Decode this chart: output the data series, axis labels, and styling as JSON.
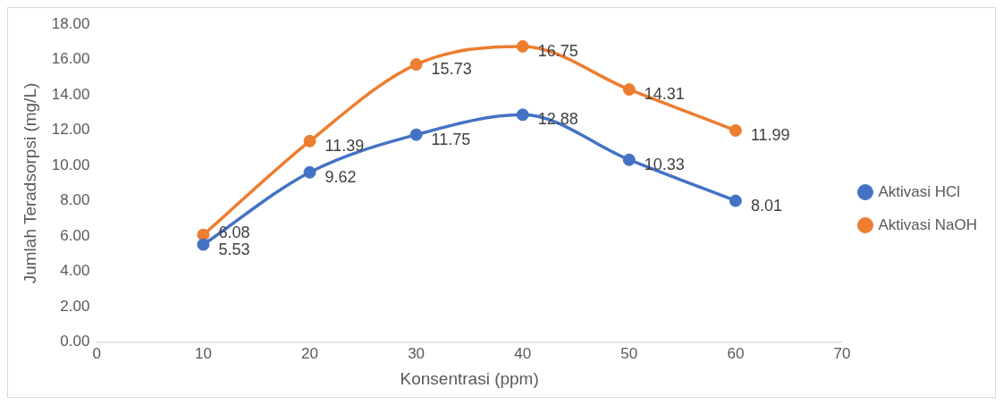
{
  "chart_data": {
    "type": "line",
    "xlabel": "Konsentrasi (ppm)",
    "ylabel": "Jumlah Teradsorpsi (mg/L)",
    "x": [
      10,
      20,
      30,
      40,
      50,
      60
    ],
    "series": [
      {
        "name": "Aktivasi HCl",
        "color": "#4472c4",
        "values": [
          5.53,
          9.62,
          11.75,
          12.88,
          10.33,
          8.01
        ]
      },
      {
        "name": "Aktivasi NaOH",
        "color": "#ed7d31",
        "values": [
          6.08,
          11.39,
          15.73,
          16.75,
          14.31,
          11.99
        ]
      }
    ],
    "xlim": [
      0,
      70
    ],
    "xticks": [
      0,
      10,
      20,
      30,
      40,
      50,
      60,
      70
    ],
    "ylim": [
      0,
      18
    ],
    "yticks": [
      {
        "value": 0,
        "label": "0.00"
      },
      {
        "value": 2,
        "label": "2.00"
      },
      {
        "value": 4,
        "label": "4.00"
      },
      {
        "value": 6,
        "label": "6.00"
      },
      {
        "value": 8,
        "label": "8.00"
      },
      {
        "value": 10,
        "label": "10.00"
      },
      {
        "value": 12,
        "label": "12.00"
      },
      {
        "value": 14,
        "label": "14.00"
      },
      {
        "value": 16,
        "label": "16.00"
      },
      {
        "value": 18,
        "label": "18.00"
      }
    ],
    "grid": false,
    "legend": "right",
    "marker": "circle",
    "line_style": "solid",
    "data_labels": true
  }
}
